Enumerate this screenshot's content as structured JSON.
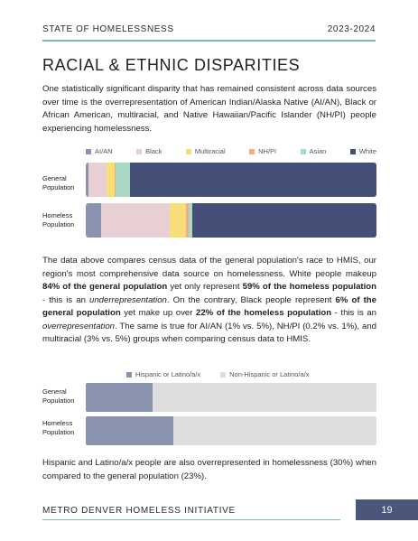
{
  "header": {
    "left": "STATE OF HOMELESSNESS",
    "right": "2023-2024"
  },
  "title": "RACIAL & ETHNIC DISPARITIES",
  "intro": "One statistically significant disparity that has remained consistent across data sources over time is the overrepresentation of American Indian/Alaska Native (AI/AN), Black or African American, multiracial, and Native Hawaiian/Pacific Islander (NH/PI) people experiencing homelessness.",
  "analysis": {
    "s1": "The data above compares census data of the general population's race to HMIS, our region's most comprehensive data source on homelessness. White people makeup ",
    "b1": "84% of the general population",
    "s2": " yet only represent ",
    "b2": "59% of the homeless population",
    "s3": " - this is an ",
    "i1": "underrepresentation",
    "s4": ". On the contrary, Black people represent ",
    "b3": "6% of the general population",
    "s5": " yet make up over ",
    "b4": "22% of the homeless population",
    "s6": " - this is an ",
    "i2": "overrepresentation",
    "s7": ". The same is true for AI/AN (1% vs. 5%), NH/PI (0.2% vs. 1%), and multiracial (3% vs. 5%)  groups when comparing census data to HMIS."
  },
  "closing": "Hispanic and Latino/a/x people are also overrepresented in homelessness (30%) when compared to the general population (23%).",
  "footer": {
    "org": "METRO DENVER HOMELESS INITIATIVE",
    "page": "19"
  },
  "chart_data": [
    {
      "type": "bar",
      "orientation": "horizontal-stacked-100",
      "categories": [
        "General Population",
        "Homeless Population"
      ],
      "series": [
        {
          "name": "AI/AN",
          "color": "#8a93ad",
          "values": [
            1,
            5
          ]
        },
        {
          "name": "Black",
          "color": "#e8cfd3",
          "values": [
            6,
            22
          ]
        },
        {
          "name": "Multiracial",
          "color": "#f6df7a",
          "values": [
            3,
            5
          ]
        },
        {
          "name": "NH/PI",
          "color": "#f2ab82",
          "values": [
            0.2,
            1
          ]
        },
        {
          "name": "Asian",
          "color": "#a9d8c4",
          "values": [
            5,
            1
          ]
        },
        {
          "name": "White",
          "color": "#444f78",
          "values": [
            84,
            59
          ]
        }
      ],
      "legend": "top"
    },
    {
      "type": "bar",
      "orientation": "horizontal-stacked-100",
      "categories": [
        "General Population",
        "Homeless Population"
      ],
      "series": [
        {
          "name": "Hispanic or Latino/a/x",
          "color": "#8a93ad",
          "values": [
            23,
            30
          ]
        },
        {
          "name": "Non-Hispanic or Latino/a/x",
          "color": "#dedede",
          "values": [
            77,
            70
          ]
        }
      ],
      "legend": "top"
    }
  ]
}
